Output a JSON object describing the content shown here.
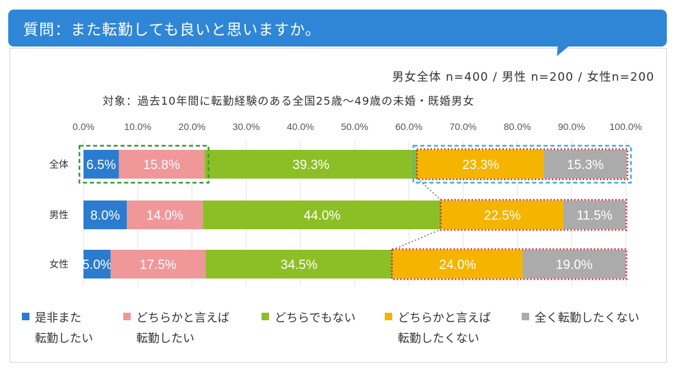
{
  "question": "質問：また転勤しても良いと思いますか。",
  "sample_text": "男女全体 n=400 / 男性 n=200 / 女性n=200",
  "subject_text": "対象：過去10年間に転勤経験のある全国25歳〜49歳の未婚・既婚男女",
  "colors": {
    "banner": "#2f86d6",
    "want_again": "#2b7ccf",
    "neutral_want": "#f0979a",
    "neither": "#8cbf26",
    "neutral_not": "#f5b400",
    "not_at_all": "#ababab",
    "green_box": "#3a9a3a",
    "blue_box": "#3eb0d8",
    "red_box": "#e0202a"
  },
  "chart_data": {
    "type": "bar",
    "orientation": "horizontal",
    "stacked": true,
    "xlim": [
      0,
      100
    ],
    "tick_labels": [
      "0.0%",
      "10.0%",
      "20.0%",
      "30.0%",
      "40.0%",
      "50.0%",
      "60.0%",
      "70.0%",
      "80.0%",
      "90.0%",
      "100.0%"
    ],
    "categories": [
      "全体",
      "男性",
      "女性"
    ],
    "series": [
      {
        "name": "是非また転勤したい",
        "legend_lines": [
          "是非また",
          "転勤したい"
        ],
        "color_key": "want_again",
        "values": [
          6.5,
          8.0,
          5.0
        ],
        "labels": [
          "6.5%",
          "8.0%",
          "5.0%"
        ]
      },
      {
        "name": "どちらかと言えば転勤したい",
        "legend_lines": [
          "どちらかと言えば",
          "転勤したい"
        ],
        "color_key": "neutral_want",
        "values": [
          15.8,
          14.0,
          17.5
        ],
        "labels": [
          "15.8%",
          "14.0%",
          "17.5%"
        ]
      },
      {
        "name": "どちらでもない",
        "legend_lines": [
          "どちらでもない"
        ],
        "color_key": "neither",
        "values": [
          39.3,
          44.0,
          34.5
        ],
        "labels": [
          "39.3%",
          "44.0%",
          "34.5%"
        ]
      },
      {
        "name": "どちらかと言えば転勤したくない",
        "legend_lines": [
          "どちらかと言えば",
          "転勤したくない"
        ],
        "color_key": "neutral_not",
        "values": [
          23.3,
          22.5,
          24.0
        ],
        "labels": [
          "23.3%",
          "22.5%",
          "24.0%"
        ]
      },
      {
        "name": "全く転勤したくない",
        "legend_lines": [
          "全く転勤したくない"
        ],
        "color_key": "not_at_all",
        "values": [
          15.3,
          11.5,
          19.0
        ],
        "labels": [
          "15.3%",
          "11.5%",
          "19.0%"
        ]
      }
    ]
  }
}
